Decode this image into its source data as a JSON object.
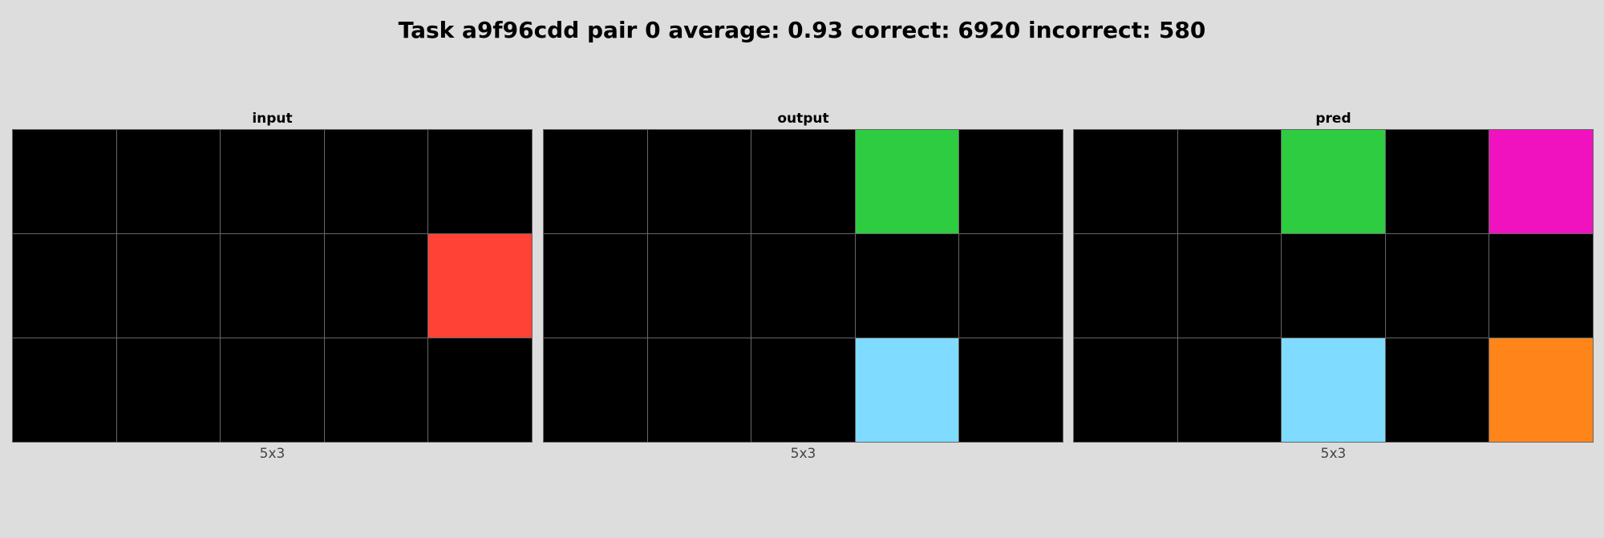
{
  "title": "Task a9f96cdd pair 0 average: 0.93 correct: 6920 incorrect: 580",
  "palette": {
    "0": "#000000",
    "2": "#ff4136",
    "3": "#2ecc40",
    "6": "#f012be",
    "7": "#ff851b",
    "8": "#7fdbff"
  },
  "panels": [
    {
      "id": "input",
      "label": "input",
      "dims": "5x3",
      "grid": [
        [
          0,
          0,
          0,
          0,
          0
        ],
        [
          0,
          0,
          0,
          0,
          2
        ],
        [
          0,
          0,
          0,
          0,
          0
        ]
      ]
    },
    {
      "id": "output",
      "label": "output",
      "dims": "5x3",
      "grid": [
        [
          0,
          0,
          0,
          3,
          0
        ],
        [
          0,
          0,
          0,
          0,
          0
        ],
        [
          0,
          0,
          0,
          8,
          0
        ]
      ]
    },
    {
      "id": "pred",
      "label": "pred",
      "dims": "5x3",
      "grid": [
        [
          0,
          0,
          3,
          0,
          6
        ],
        [
          0,
          0,
          0,
          0,
          0
        ],
        [
          0,
          0,
          8,
          0,
          7
        ]
      ]
    }
  ]
}
